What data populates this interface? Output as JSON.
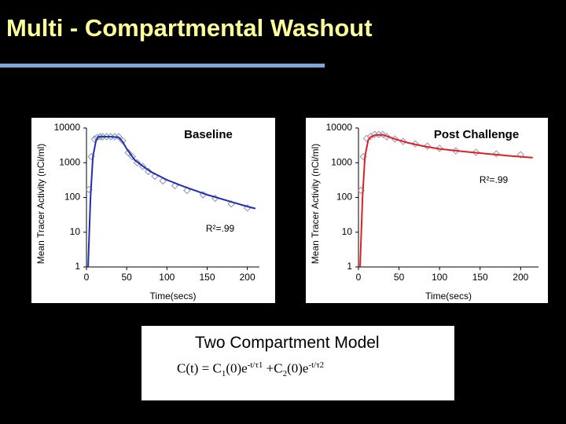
{
  "title": "Multi - Compartmental Washout",
  "model_box": {
    "heading": "Two Compartment Model",
    "formula": [
      "C(t) = C",
      "1",
      "(0)e",
      "-t/τ1",
      " +C",
      "2",
      "(0)e",
      "-t/τ2"
    ]
  },
  "chart_data": [
    {
      "type": "line",
      "title": "Baseline",
      "title_color": "#000000",
      "annotation": "R²=.99",
      "x_label": "Time(secs)",
      "y_label": "Mean Tracer Activity (nCi/ml)",
      "log_y": true,
      "xlim": [
        0,
        215
      ],
      "xticks": [
        0,
        50,
        100,
        150,
        200
      ],
      "ylim": [
        1,
        10000
      ],
      "yticks": [
        1,
        10,
        100,
        1000,
        10000
      ],
      "series": [
        {
          "color": "#8a93b0",
          "markers": true,
          "line": false,
          "x": [
            3,
            6,
            10,
            13,
            17,
            20,
            25,
            30,
            35,
            40,
            45,
            52,
            57,
            63,
            70,
            77,
            85,
            95,
            110,
            125,
            145,
            160,
            180,
            200
          ],
          "values": [
            170,
            1500,
            4800,
            5300,
            5600,
            5600,
            5600,
            5600,
            5600,
            5600,
            4300,
            1950,
            1500,
            1000,
            780,
            560,
            410,
            300,
            220,
            160,
            120,
            95,
            65,
            50
          ]
        },
        {
          "color": "#1f2fb0",
          "markers": false,
          "line": true,
          "x": [
            2,
            5,
            8,
            12,
            15,
            20,
            30,
            40,
            45,
            50,
            60,
            70,
            80,
            100,
            120,
            150,
            180,
            200,
            210
          ],
          "values": [
            1,
            100,
            1500,
            4500,
            5600,
            5600,
            5600,
            5400,
            4000,
            2500,
            1200,
            800,
            550,
            320,
            210,
            120,
            75,
            55,
            48
          ]
        }
      ]
    },
    {
      "type": "line",
      "title": "Post Challenge",
      "title_color": "#e02020",
      "annotation": "R²=.99",
      "x_label": "Time(secs)",
      "y_label": "Mean Tracer Activity (nCi/ml)",
      "log_y": true,
      "xlim": [
        0,
        222
      ],
      "xticks": [
        0,
        50,
        100,
        150,
        200
      ],
      "ylim": [
        1,
        10000
      ],
      "yticks": [
        1,
        10,
        100,
        1000,
        10000
      ],
      "series": [
        {
          "color": "#9a8fb5",
          "markers": true,
          "line": false,
          "x": [
            3,
            6,
            10,
            15,
            20,
            25,
            30,
            35,
            45,
            55,
            70,
            85,
            100,
            120,
            145,
            170,
            200
          ],
          "values": [
            160,
            1500,
            5000,
            5700,
            6500,
            6500,
            6500,
            5600,
            4800,
            4100,
            3500,
            3000,
            2600,
            2200,
            2000,
            1800,
            1700
          ]
        },
        {
          "color": "#e02020",
          "markers": false,
          "line": true,
          "x": [
            2,
            5,
            8,
            12,
            15,
            20,
            30,
            35,
            45,
            60,
            80,
            100,
            130,
            160,
            190,
            215
          ],
          "values": [
            1,
            100,
            1500,
            4500,
            5500,
            6200,
            6400,
            5800,
            4800,
            3800,
            3000,
            2500,
            2100,
            1800,
            1550,
            1400
          ]
        }
      ]
    }
  ]
}
